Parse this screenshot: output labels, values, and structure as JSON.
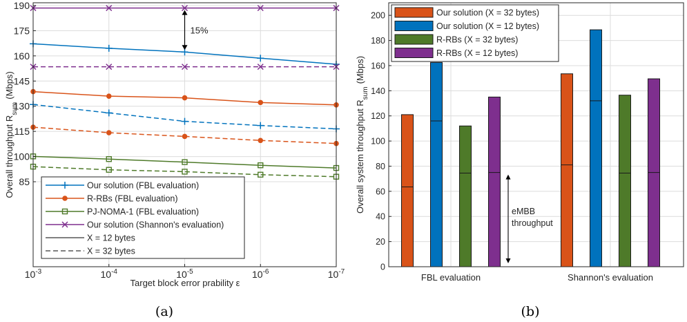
{
  "chart_data": [
    {
      "type": "line",
      "caption": "(a)",
      "xlabel": "Target block error prability ε",
      "ylabel_main": "Overall throughput R",
      "ylabel_sub": "sum",
      "ylabel_unit": "(Mbps)",
      "x": [
        -3,
        -4,
        -5,
        -6,
        -7
      ],
      "x_tick_base": "10",
      "x_tick_labels": [
        "-3",
        "-4",
        "-5",
        "-6",
        "-7"
      ],
      "ylim": [
        0,
        190
      ],
      "y_display_ticks": [
        190,
        175,
        160,
        145,
        130,
        115,
        100,
        85
      ],
      "grid": true,
      "colors": {
        "ours": "#0072BD",
        "rrb": "#D95319",
        "pj": "#4E7A29",
        "shannon": "#7E2F8E"
      },
      "series": [
        {
          "key": "ours",
          "name": "Our solution (FBL evaluation)",
          "color": "#0072BD",
          "marker": "plus",
          "X": "12",
          "values": [
            167.2,
            164.5,
            162.3,
            158.6,
            155
          ]
        },
        {
          "key": "ours",
          "color": "#0072BD",
          "marker": "plus",
          "X": "32",
          "values": [
            131,
            126,
            121,
            118.5,
            116.5
          ]
        },
        {
          "key": "rrb",
          "name": "R-RBs (FBL evaluation)",
          "color": "#D95319",
          "marker": "circle",
          "X": "12",
          "values": [
            138.7,
            136,
            135,
            132.2,
            130.8
          ]
        },
        {
          "key": "rrb",
          "color": "#D95319",
          "marker": "circle",
          "X": "32",
          "values": [
            117.5,
            114.2,
            112,
            109.6,
            107.8
          ]
        },
        {
          "key": "pj",
          "name": "PJ-NOMA-1 (FBL evaluation)",
          "color": "#4E7A29",
          "marker": "square",
          "X": "12",
          "values": [
            100.1,
            98.5,
            96.7,
            94.8,
            93.2
          ]
        },
        {
          "key": "pj",
          "color": "#4E7A29",
          "marker": "square",
          "X": "32",
          "values": [
            94,
            92.1,
            91,
            89.2,
            88
          ]
        },
        {
          "key": "shannon",
          "name": "Our solution (Shannon's evaluation)",
          "color": "#7E2F8E",
          "marker": "x",
          "X": "12",
          "values": [
            188.5,
            188.5,
            188.5,
            188.5,
            188.5
          ]
        },
        {
          "key": "shannon",
          "color": "#7E2F8E",
          "marker": "x",
          "X": "32",
          "values": [
            153.5,
            153.5,
            153.5,
            153.5,
            153.5
          ]
        }
      ],
      "legend": {
        "placement": "lower-left",
        "entries": [
          {
            "label": "Our solution (FBL evaluation)",
            "color": "#0072BD",
            "marker": "plus"
          },
          {
            "label": "R-RBs (FBL evaluation)",
            "color": "#D95319",
            "marker": "circle"
          },
          {
            "label": "PJ-NOMA-1 (FBL evaluation)",
            "color": "#4E7A29",
            "marker": "square"
          },
          {
            "label": "Our solution (Shannon's evaluation)",
            "color": "#7E2F8E",
            "marker": "x"
          },
          {
            "label": "X = 12 bytes",
            "color": "#000000",
            "style": "solid"
          },
          {
            "label": "X = 32 bytes",
            "color": "#000000",
            "style": "dashed"
          }
        ]
      },
      "annotations": [
        {
          "text": "15%",
          "x": -5,
          "y_from": 188.5,
          "y_to": 162.3
        }
      ]
    },
    {
      "type": "bar",
      "caption": "(b)",
      "categories": [
        "FBL evaluation",
        "Shannon's evaluation"
      ],
      "ylabel_main": "Overall system throughput R",
      "ylabel_sub": "sum",
      "ylabel_unit": "(Mbps)",
      "ylim": [
        0,
        210
      ],
      "yticks": [
        0,
        20,
        40,
        60,
        80,
        100,
        120,
        140,
        160,
        180,
        200
      ],
      "grid": true,
      "series": [
        {
          "name": "Our solution (X = 32 bytes)",
          "color": "#D95319",
          "totals": [
            121,
            153.5
          ],
          "embb": [
            63.5,
            81
          ]
        },
        {
          "name": "Our solution (X = 12 bytes)",
          "color": "#0072BD",
          "totals": [
            162.5,
            188.5
          ],
          "embb": [
            116,
            132
          ]
        },
        {
          "name": "R-RBs (X = 32 bytes)",
          "color": "#4E7A29",
          "totals": [
            112,
            136.5
          ],
          "embb": [
            74.5,
            74.5
          ]
        },
        {
          "name": "R-RBs (X = 12 bytes)",
          "color": "#7E2F8E",
          "totals": [
            135,
            149.5
          ],
          "embb": [
            75,
            75
          ]
        }
      ],
      "legend": {
        "placement": "top-left"
      },
      "annotations": [
        {
          "text_line1": "eMBB",
          "text_line2": "throughput",
          "y_from": 0,
          "y_to": 75
        }
      ]
    }
  ]
}
